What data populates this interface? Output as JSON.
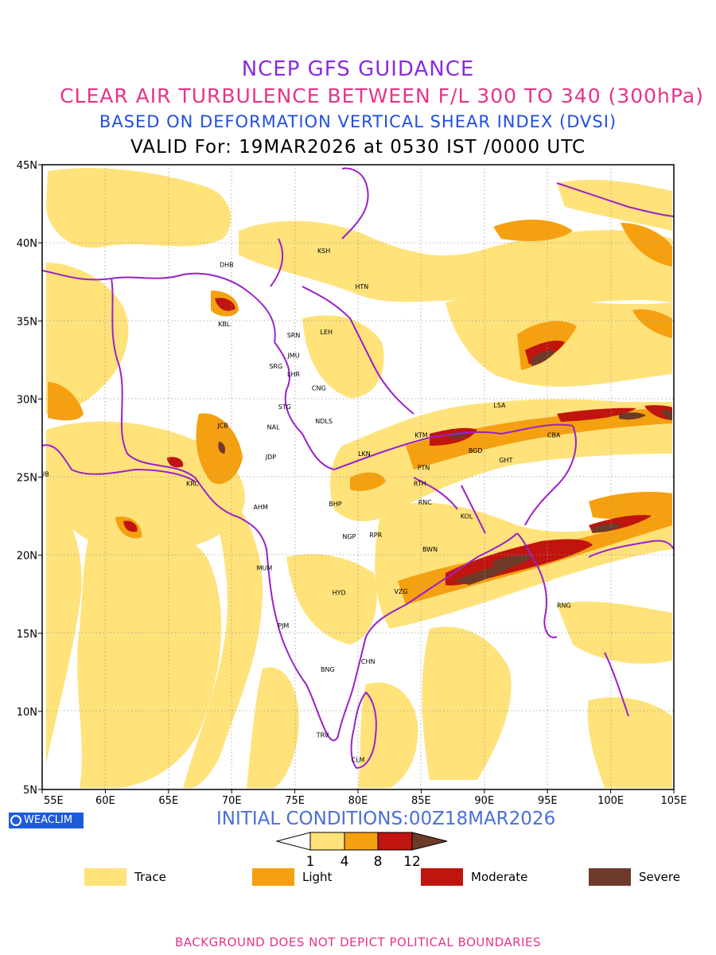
{
  "titles": {
    "line1": "NCEP GFS GUIDANCE",
    "line2": "CLEAR AIR TURBULENCE BETWEEN F/L 300 TO 340 (300hPa)",
    "line3": "BASED ON DEFORMATION VERTICAL SHEAR INDEX (DVSI)",
    "line4": "VALID For: 19MAR2026 at 0530 IST /0000 UTC"
  },
  "axes": {
    "lat_ticks": [
      "45N",
      "40N",
      "35N",
      "30N",
      "25N",
      "20N",
      "15N",
      "10N",
      "5N"
    ],
    "lon_ticks": [
      "55E",
      "60E",
      "65E",
      "70E",
      "75E",
      "80E",
      "85E",
      "90E",
      "95E",
      "100E",
      "105E"
    ]
  },
  "cities": [
    {
      "code": "KSH",
      "lon": 77.3,
      "lat": 39.5
    },
    {
      "code": "DHB",
      "lon": 69.6,
      "lat": 38.6
    },
    {
      "code": "HTN",
      "lon": 80.3,
      "lat": 37.2
    },
    {
      "code": "KBL",
      "lon": 69.4,
      "lat": 34.8
    },
    {
      "code": "SRN",
      "lon": 74.9,
      "lat": 34.1
    },
    {
      "code": "LEH",
      "lon": 77.5,
      "lat": 34.3
    },
    {
      "code": "JMU",
      "lon": 74.9,
      "lat": 32.8
    },
    {
      "code": "SRG",
      "lon": 73.5,
      "lat": 32.1
    },
    {
      "code": "LHR",
      "lon": 74.9,
      "lat": 31.6
    },
    {
      "code": "CNG",
      "lon": 76.9,
      "lat": 30.7
    },
    {
      "code": "LSA",
      "lon": 91.2,
      "lat": 29.6
    },
    {
      "code": "STG",
      "lon": 74.2,
      "lat": 29.5
    },
    {
      "code": "JCB",
      "lon": 69.3,
      "lat": 28.3
    },
    {
      "code": "NDLS",
      "lon": 77.3,
      "lat": 28.6
    },
    {
      "code": "NAL",
      "lon": 73.3,
      "lat": 28.2
    },
    {
      "code": "CBA",
      "lon": 95.5,
      "lat": 27.7
    },
    {
      "code": "KTM",
      "lon": 85.0,
      "lat": 27.7
    },
    {
      "code": "BGD",
      "lon": 89.3,
      "lat": 26.7
    },
    {
      "code": "JDP",
      "lon": 73.1,
      "lat": 26.3
    },
    {
      "code": "LKN",
      "lon": 80.5,
      "lat": 26.5
    },
    {
      "code": "GHT",
      "lon": 91.7,
      "lat": 26.1
    },
    {
      "code": "PTN",
      "lon": 85.2,
      "lat": 25.6
    },
    {
      "code": "DUB",
      "lon": 55.0,
      "lat": 25.2
    },
    {
      "code": "KRC",
      "lon": 66.9,
      "lat": 24.6
    },
    {
      "code": "RTH",
      "lon": 84.9,
      "lat": 24.6
    },
    {
      "code": "BHP",
      "lon": 78.2,
      "lat": 23.3
    },
    {
      "code": "AHM",
      "lon": 72.3,
      "lat": 23.1
    },
    {
      "code": "RNC",
      "lon": 85.3,
      "lat": 23.4
    },
    {
      "code": "KOL",
      "lon": 88.6,
      "lat": 22.5
    },
    {
      "code": "NGP",
      "lon": 79.3,
      "lat": 21.2
    },
    {
      "code": "RPR",
      "lon": 81.4,
      "lat": 21.3
    },
    {
      "code": "BWN",
      "lon": 85.7,
      "lat": 20.4
    },
    {
      "code": "MUM",
      "lon": 72.6,
      "lat": 19.2
    },
    {
      "code": "HYD",
      "lon": 78.5,
      "lat": 17.6
    },
    {
      "code": "VZG",
      "lon": 83.4,
      "lat": 17.7
    },
    {
      "code": "RNG",
      "lon": 96.3,
      "lat": 16.8
    },
    {
      "code": "PJM",
      "lon": 74.1,
      "lat": 15.5
    },
    {
      "code": "CHN",
      "lon": 80.8,
      "lat": 13.2
    },
    {
      "code": "BNG",
      "lon": 77.6,
      "lat": 12.7
    },
    {
      "code": "TRV",
      "lon": 77.2,
      "lat": 8.5
    },
    {
      "code": "CLM",
      "lon": 80.0,
      "lat": 6.9
    }
  ],
  "colorbar": {
    "ticks": [
      "1",
      "4",
      "8",
      "12"
    ],
    "colors": [
      "#ffe27a",
      "#f5a010",
      "#c0140e",
      "#6e3a2a"
    ]
  },
  "legend": [
    {
      "label": "Trace",
      "color": "#ffe27a"
    },
    {
      "label": "Light",
      "color": "#f5a010"
    },
    {
      "label": "Moderate",
      "color": "#c0140e"
    },
    {
      "label": "Severe",
      "color": "#6e3a2a"
    }
  ],
  "badge": "WEACLIM",
  "initial_conditions": "INITIAL CONDITIONS:00Z18MAR2026",
  "footer": "BACKGROUND DOES NOT DEPICT POLITICAL BOUNDARIES",
  "colors": {
    "boundary": "#9a22c8",
    "trace": "#ffe27a",
    "light": "#f5a010",
    "moderate": "#c0140e",
    "severe": "#6e3a2a"
  }
}
